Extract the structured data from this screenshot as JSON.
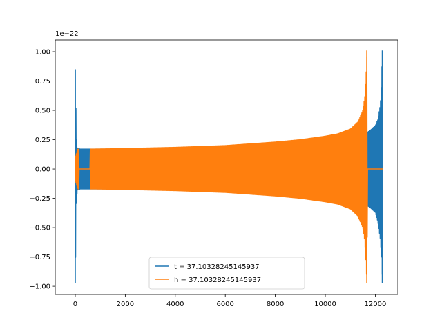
{
  "chart_data": {
    "type": "line",
    "title": "",
    "xlabel": "",
    "ylabel": "",
    "y_offset_label": "1e−22",
    "xlim": [
      -800,
      12900
    ],
    "ylim": [
      -1.07,
      1.1
    ],
    "xticks": [
      0,
      2000,
      4000,
      6000,
      8000,
      10000,
      12000
    ],
    "xtick_labels": [
      "0",
      "2000",
      "4000",
      "6000",
      "8000",
      "10000",
      "12000"
    ],
    "yticks": [
      -1.0,
      -0.75,
      -0.5,
      -0.25,
      0.0,
      0.25,
      0.5,
      0.75,
      1.0
    ],
    "ytick_labels": [
      "−1.00",
      "−0.75",
      "−0.50",
      "−0.25",
      "0.00",
      "0.25",
      "0.50",
      "0.75",
      "1.00"
    ],
    "grid": false,
    "legend": "lower-center",
    "series": [
      {
        "name": "t = 37.10328245145937",
        "color": "#1f77b4",
        "envelope": {
          "x": [
            0,
            20,
            40,
            80,
            200,
            600,
            2000,
            4000,
            6000,
            8000,
            9000,
            10000,
            11000,
            11600,
            11800,
            12000,
            12100,
            12200,
            12250,
            12280,
            12300
          ],
          "upper": [
            0.85,
            0.66,
            0.3,
            0.18,
            0.17,
            0.17,
            0.17,
            0.175,
            0.185,
            0.2,
            0.205,
            0.21,
            0.22,
            0.3,
            0.33,
            0.37,
            0.42,
            0.55,
            0.75,
            1.01,
            0.0
          ],
          "lower": [
            -0.97,
            -0.66,
            -0.3,
            -0.18,
            -0.17,
            -0.17,
            -0.17,
            -0.175,
            -0.185,
            -0.2,
            -0.205,
            -0.21,
            -0.22,
            -0.3,
            -0.33,
            -0.37,
            -0.45,
            -0.6,
            -0.75,
            -0.91,
            0.0
          ]
        }
      },
      {
        "name": "h = 37.10328245145937",
        "color": "#ff7f0e",
        "envelope": {
          "x": [
            0,
            100,
            300,
            500,
            700,
            2000,
            4000,
            6000,
            8000,
            9000,
            10000,
            10500,
            11000,
            11300,
            11500,
            11580,
            11640,
            11660,
            11700,
            12300
          ],
          "upper": [
            0.1,
            0.17,
            0.17,
            0.17,
            0.17,
            0.175,
            0.185,
            0.2,
            0.23,
            0.25,
            0.28,
            0.3,
            0.34,
            0.4,
            0.5,
            0.62,
            0.85,
            1.01,
            0.0,
            0.0
          ],
          "lower": [
            -0.1,
            -0.17,
            -0.17,
            -0.17,
            -0.17,
            -0.175,
            -0.185,
            -0.2,
            -0.23,
            -0.25,
            -0.28,
            -0.3,
            -0.34,
            -0.4,
            -0.5,
            -0.62,
            -0.85,
            -0.97,
            0.0,
            0.0
          ],
          "flat_zero_ranges": [
            [
              150,
              600
            ],
            [
              11680,
              12320
            ]
          ]
        }
      }
    ]
  }
}
